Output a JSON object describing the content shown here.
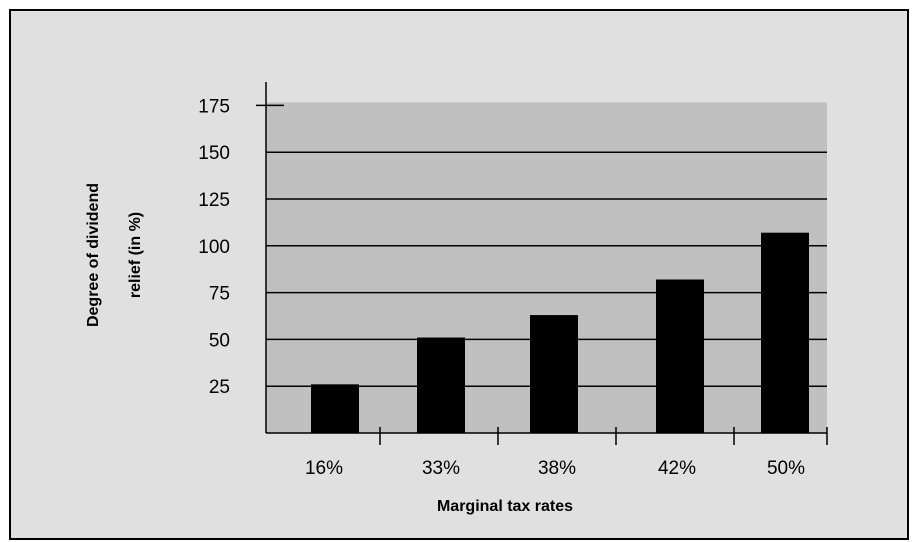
{
  "chart_data": {
    "type": "bar",
    "title": "",
    "xlabel": "Marginal tax rates",
    "ylabel_lines": [
      "Degree of dividend",
      "relief (in %)"
    ],
    "categories": [
      "16%",
      "33%",
      "38%",
      "42%",
      "50%"
    ],
    "values": [
      26,
      51,
      63,
      82,
      107
    ],
    "ylim": [
      0,
      180
    ],
    "yticks": [
      25,
      50,
      75,
      100,
      125,
      150,
      175
    ],
    "ytick_labels": [
      "25",
      "50",
      "75",
      "100",
      "125",
      "150",
      "175"
    ],
    "grid": true,
    "legend": "none"
  },
  "colors": {
    "frame_background": "#e0e0e0",
    "plot_background": "#c0c0c0",
    "bar_fill": "#000000",
    "gridline": "#000000"
  }
}
